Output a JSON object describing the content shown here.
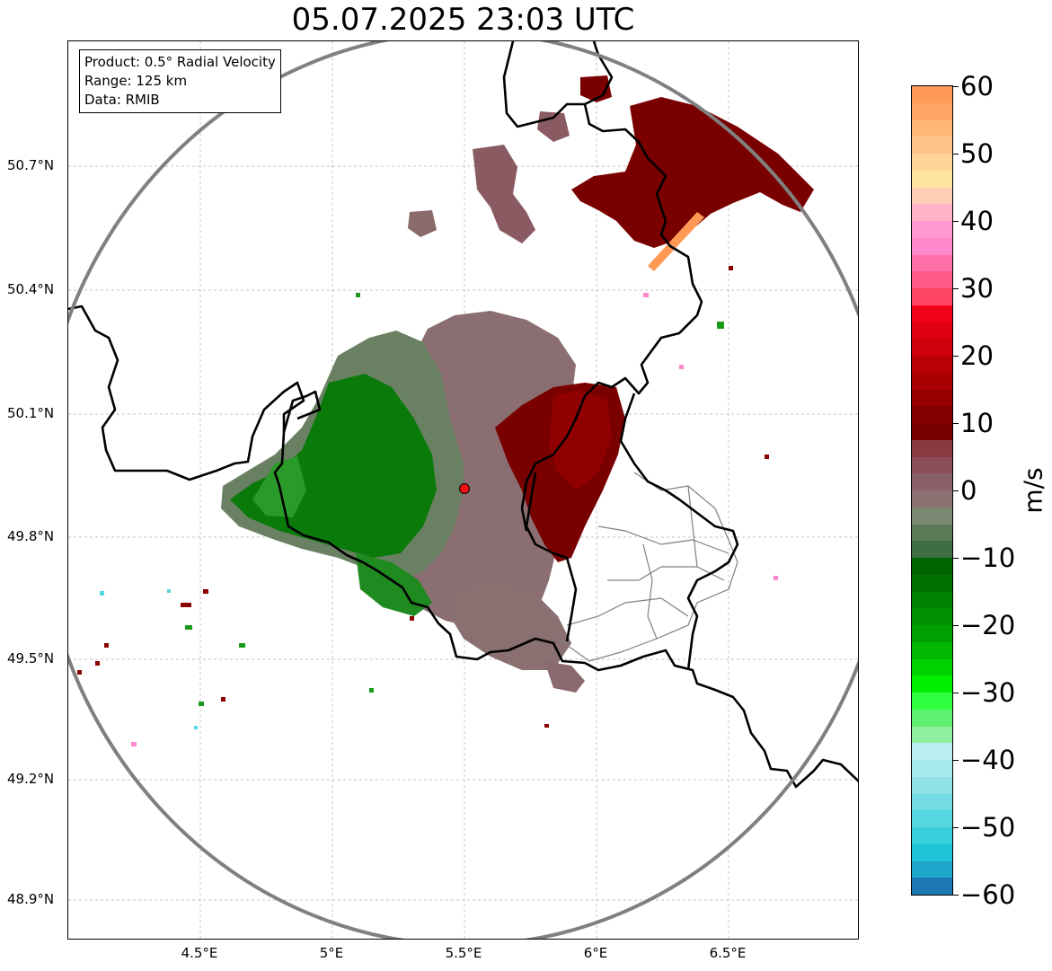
{
  "title": "05.07.2025 23:03 UTC",
  "info_box": {
    "product": "Product: 0.5° Radial Velocity",
    "range": "Range: 125 km",
    "data_source": "Data: RMIB"
  },
  "map": {
    "lat_ticks": [
      "50.7°N",
      "50.4°N",
      "50.1°N",
      "49.8°N",
      "49.5°N",
      "49.2°N",
      "48.9°N"
    ],
    "lon_ticks": [
      "4.5°E",
      "5°E",
      "5.5°E",
      "6°E",
      "6.5°E"
    ],
    "radar_site": {
      "lon": 5.505,
      "lat": 49.914
    },
    "range_ring_color": "#808080",
    "border_color": "#000000",
    "gridline_color": "#b0b0b0"
  },
  "colorbar": {
    "unit": "m/s",
    "tick_labels": [
      "60",
      "50",
      "40",
      "30",
      "20",
      "10",
      "0",
      "−10",
      "−20",
      "−30",
      "−40",
      "−50",
      "−60"
    ],
    "colors_top_to_bottom": [
      "#ff9955",
      "#ffa666",
      "#ffb877",
      "#ffc488",
      "#ffd499",
      "#ffe4a0",
      "#ffcdb4",
      "#ffb2c8",
      "#ff99d0",
      "#ff88cc",
      "#ff70a8",
      "#ff5a88",
      "#ff4466",
      "#f2001a",
      "#e00010",
      "#d0000a",
      "#bb0005",
      "#a80000",
      "#960000",
      "#840000",
      "#780000",
      "#8a3a3e",
      "#8c4f5a",
      "#8a6068",
      "#8a7272",
      "#7a8a72",
      "#5c7a58",
      "#3f6e42",
      "#006400",
      "#007200",
      "#008000",
      "#009000",
      "#00a000",
      "#00b800",
      "#00d200",
      "#00f000",
      "#30ff40",
      "#60f070",
      "#90eea0",
      "#b8eef0",
      "#a6e8ec",
      "#90e2e8",
      "#74dce4",
      "#56d6e0",
      "#38d0dc",
      "#20c4d8",
      "#1ea8cc",
      "#1f77b4"
    ]
  }
}
